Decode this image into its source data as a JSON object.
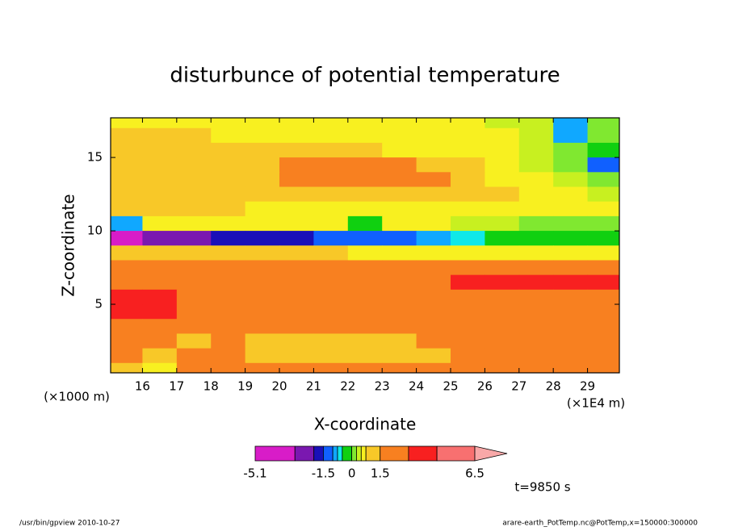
{
  "chart_data": {
    "type": "heatmap",
    "title": "disturbunce of potential temperature",
    "x_label": "X-coordinate",
    "y_label": "Z-coordinate",
    "x_unit": "(×1E4 m)",
    "y_unit": "(×1000 m)",
    "annotation": "t=9850 s",
    "footer_left": "/usr/bin/gpview   2010-10-27",
    "footer_right": "arare-earth_PotTemp.nc@PotTemp,x=150000:300000",
    "xlim": [
      15.07,
      29.93
    ],
    "ylim": [
      0.33,
      17.7
    ],
    "xticks": [
      16,
      17,
      18,
      19,
      20,
      21,
      22,
      23,
      24,
      25,
      26,
      27,
      28,
      29
    ],
    "yticks": [
      5,
      10,
      15
    ],
    "x": [
      15.5,
      16.5,
      17.5,
      18.5,
      19.5,
      20.5,
      21.5,
      22.5,
      23.5,
      24.5,
      25.5,
      26.5,
      27.5,
      28.5,
      29.5
    ],
    "z": [
      17.5,
      16.5,
      15.5,
      14.5,
      13.5,
      12.5,
      11.5,
      10.5,
      9.5,
      8.5,
      7.5,
      6.5,
      5.5,
      4.5,
      3.5,
      2.5,
      1.5,
      0.5
    ],
    "values": [
      [
        0.6,
        0.6,
        0.6,
        0.6,
        0.6,
        0.6,
        0.6,
        0.6,
        0.6,
        0.6,
        0.6,
        0.4,
        0.3,
        -1,
        0.2
      ],
      [
        1,
        1,
        0.9,
        0.6,
        0.6,
        0.6,
        0.6,
        0.6,
        0.6,
        0.6,
        0.6,
        0.6,
        0.3,
        -0.8,
        0.1
      ],
      [
        1.2,
        1,
        1,
        1,
        1,
        1,
        1,
        1,
        0.7,
        0.6,
        0.6,
        0.6,
        0.3,
        0.1,
        -0.3
      ],
      [
        1.3,
        1.2,
        1,
        1,
        1,
        1.6,
        1.7,
        1.7,
        1.6,
        1.2,
        1,
        0.7,
        0.4,
        0.1,
        -1.2
      ],
      [
        1.2,
        1.2,
        1.2,
        1.2,
        1.2,
        1.7,
        1.8,
        1.8,
        1.7,
        1.6,
        1.2,
        0.7,
        0.5,
        0.3,
        0.1
      ],
      [
        1.2,
        1.2,
        1.2,
        1.2,
        1.2,
        1.2,
        1.2,
        1.2,
        1.2,
        1.2,
        1.2,
        1,
        0.6,
        0.5,
        0.4
      ],
      [
        1,
        1.2,
        1,
        0.8,
        0.7,
        0.7,
        0.6,
        0.6,
        0.6,
        0.6,
        0.6,
        0.6,
        0.6,
        0.5,
        0.5
      ],
      [
        -1,
        0.5,
        0.6,
        0.6,
        0.6,
        0.6,
        0.6,
        -0.3,
        0.5,
        0.6,
        0.4,
        0.3,
        0.1,
        0.1,
        0.1
      ],
      [
        -5,
        -3,
        -2.2,
        -2,
        -2,
        -1.8,
        -1.5,
        -1.3,
        -1.2,
        -1,
        -0.6,
        -0.3,
        -0.3,
        -0.3,
        -0.3
      ],
      [
        1,
        1,
        1,
        1,
        1,
        1,
        1,
        0.7,
        0.7,
        0.7,
        0.6,
        0.6,
        0.6,
        0.6,
        0.6
      ],
      [
        1.6,
        1.7,
        1.7,
        1.7,
        1.7,
        1.7,
        1.7,
        1.7,
        1.6,
        1.6,
        1.6,
        1.6,
        1.6,
        1.6,
        1.6
      ],
      [
        1.8,
        1.8,
        1.8,
        1.8,
        1.8,
        1.8,
        1.8,
        1.8,
        1.8,
        2.2,
        3.2,
        3.2,
        3.3,
        3.3,
        3.3
      ],
      [
        3.3,
        3.2,
        1.8,
        1.8,
        1.8,
        1.8,
        1.8,
        1.8,
        1.8,
        1.8,
        2,
        2,
        1.8,
        1.8,
        1.8
      ],
      [
        3.2,
        3.2,
        1.8,
        1.8,
        1.8,
        1.8,
        1.8,
        1.8,
        1.8,
        1.8,
        1.8,
        1.8,
        1.8,
        1.8,
        1.8
      ],
      [
        2,
        1.8,
        1.7,
        1.7,
        1.7,
        1.7,
        1.7,
        1.7,
        1.7,
        1.7,
        1.7,
        1.7,
        1.7,
        1.7,
        1.7
      ],
      [
        1.7,
        1.6,
        1.2,
        1.6,
        1.2,
        1.1,
        1.2,
        1.2,
        1.2,
        1.6,
        1.6,
        1.7,
        1.7,
        1.7,
        1.7
      ],
      [
        1.5,
        1,
        1.6,
        1.6,
        1.2,
        1,
        1,
        1,
        1.1,
        1.2,
        1.6,
        1.7,
        1.7,
        1.7,
        1.7
      ],
      [
        1,
        0.6,
        1.6,
        1.8,
        1.8,
        1.7,
        1.7,
        1.7,
        1.7,
        1.7,
        1.7,
        1.7,
        1.7,
        1.7,
        1.7
      ]
    ],
    "colorbar": {
      "levels": [
        -5.1,
        -3,
        -2,
        -1.5,
        -1,
        -0.75,
        -0.5,
        0,
        0.25,
        0.5,
        0.75,
        1.5,
        3,
        4.5,
        6.5
      ],
      "colors": [
        "#d81cc8",
        "#7a18b0",
        "#1a10b8",
        "#1060ff",
        "#10a8ff",
        "#10e8e8",
        "#10d010",
        "#80e830",
        "#c8f020",
        "#f8f020",
        "#f8c828",
        "#f88020",
        "#f82020",
        "#f87070",
        "#f8a8a8"
      ],
      "ticks": [
        -5.1,
        -1.5,
        0,
        1.5,
        6.5
      ]
    }
  }
}
